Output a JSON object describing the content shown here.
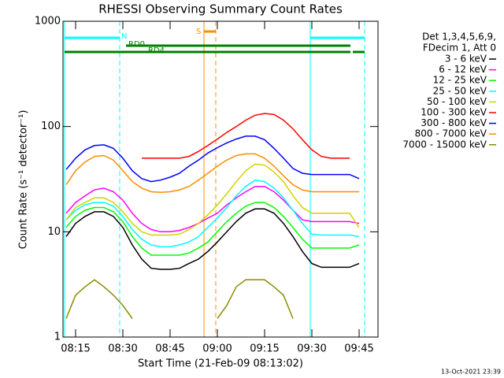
{
  "chart_data": {
    "type": "line",
    "title": "RHESSI Observing Summary Count Rates",
    "x_label": "Start Time (21-Feb-09 08:13:02)",
    "y_label": "Count Rate (s⁻¹ detector⁻¹)",
    "legend_header": [
      "Det 1,3,4,5,6,9,",
      "FDecim 1, Att 0"
    ],
    "footer": "13-Oct-2021 23:39",
    "log_y": true,
    "ylim": [
      1,
      1000
    ],
    "yticks": [
      1,
      10,
      100,
      1000
    ],
    "xlim": [
      11,
      111
    ],
    "xticks": [
      {
        "value": 15,
        "label": "08:15"
      },
      {
        "value": 30,
        "label": "08:30"
      },
      {
        "value": 45,
        "label": "08:45"
      },
      {
        "value": 60,
        "label": "09:00"
      },
      {
        "value": 75,
        "label": "09:15"
      },
      {
        "value": 90,
        "label": "09:30"
      },
      {
        "value": 105,
        "label": "09:45"
      }
    ],
    "x": [
      12,
      15,
      18,
      21,
      24,
      27,
      30,
      33,
      36,
      39,
      42,
      45,
      48,
      51,
      54,
      57,
      60,
      63,
      66,
      69,
      72,
      75,
      78,
      81,
      84,
      87,
      90,
      93,
      96,
      99,
      102,
      105
    ],
    "series": [
      {
        "name": "3 - 6 keV",
        "color": "#000000",
        "values": [
          9,
          12,
          14,
          15.5,
          15.5,
          14,
          11,
          7.5,
          5.5,
          4.5,
          4.4,
          4.4,
          4.5,
          5,
          5.5,
          6.5,
          8,
          10,
          12.5,
          15,
          16.5,
          16.5,
          15,
          12,
          9,
          6.5,
          5,
          4.6,
          4.6,
          4.6,
          4.6,
          5
        ]
      },
      {
        "name": "6 - 12 keV",
        "color": "#ff00ff",
        "values": [
          15,
          19,
          22,
          25,
          26,
          24,
          20,
          15,
          12,
          10.5,
          10,
          10,
          10.3,
          11,
          12,
          13.5,
          15,
          18,
          21,
          24,
          27,
          27,
          24,
          20,
          16,
          13,
          12.5,
          12.5,
          12.5,
          12.5,
          12.5,
          12
        ]
      },
      {
        "name": "12 - 25 keV",
        "color": "#00ff00",
        "values": [
          11,
          14,
          16,
          17,
          17,
          15.5,
          12.5,
          9,
          7,
          6,
          6,
          6,
          6,
          6.3,
          7,
          8,
          10,
          12.5,
          15,
          17.5,
          19,
          19,
          17,
          14,
          11,
          8.5,
          7,
          7,
          7,
          7,
          7,
          7.5
        ]
      },
      {
        "name": "25 - 50 keV",
        "color": "#00ffff",
        "values": [
          13,
          16,
          18,
          19,
          19,
          17.5,
          14,
          10.5,
          8.5,
          7.5,
          7.2,
          7.2,
          7.5,
          8,
          9,
          11,
          13.5,
          17,
          22,
          27,
          31,
          30,
          26,
          21,
          16,
          12,
          9.5,
          9.3,
          9.3,
          9.3,
          9.3,
          9
        ]
      },
      {
        "name": "50 - 100 keV",
        "color": "#d2d200",
        "values": [
          13,
          17,
          19,
          21,
          21,
          19,
          15.5,
          12,
          10,
          9.3,
          9.3,
          9.3,
          9.5,
          10.5,
          12,
          14.5,
          18,
          23,
          30,
          38,
          44,
          43,
          37,
          30,
          22,
          17,
          15,
          15,
          15,
          15,
          15,
          11
        ]
      },
      {
        "name": "100 - 300 keV",
        "color": "#ff0000",
        "values": [
          null,
          null,
          null,
          null,
          null,
          null,
          null,
          null,
          50,
          50,
          50,
          50,
          50,
          52,
          58,
          66,
          76,
          88,
          100,
          115,
          128,
          133,
          130,
          115,
          95,
          75,
          60,
          52,
          50,
          50,
          50,
          null
        ]
      },
      {
        "name": "300 - 800 keV",
        "color": "#0000ff",
        "values": [
          39,
          50,
          60,
          66,
          67,
          62,
          50,
          38,
          32,
          30,
          31,
          33,
          36,
          42,
          48,
          56,
          63,
          70,
          76,
          81,
          81,
          75,
          62,
          50,
          40,
          36,
          35,
          35,
          35,
          35,
          35,
          32
        ]
      },
      {
        "name": "800 - 7000 keV",
        "color": "#ff8c00",
        "values": [
          28,
          38,
          46,
          52,
          53,
          48,
          38,
          30,
          26,
          24,
          23.7,
          24,
          25,
          27,
          31,
          36,
          42,
          48,
          53,
          55,
          55,
          50,
          42,
          34,
          28,
          25,
          24,
          24,
          24,
          24,
          24,
          24
        ]
      },
      {
        "name": "7000 - 15000 keV",
        "color": "#8b8b00",
        "values": [
          1.5,
          2.5,
          3,
          3.5,
          3,
          2.5,
          2,
          1.5,
          null,
          null,
          null,
          null,
          null,
          null,
          null,
          null,
          1.5,
          2,
          3,
          3.5,
          3.5,
          3.5,
          3,
          2.5,
          1.5,
          null,
          null,
          null,
          null,
          null,
          null,
          null
        ]
      }
    ],
    "intervals": [
      {
        "label": "N",
        "color": "#00ffff",
        "lines": true,
        "segments": [
          [
            11.5,
            29
          ],
          [
            89.5,
            106.75
          ]
        ]
      },
      {
        "label": "S",
        "color": "#ff8c00",
        "lines": true,
        "segments": [
          [
            55.75,
            59.5
          ]
        ]
      },
      {
        "label": "RD0",
        "color": "#008000",
        "lines": false,
        "segments": [
          [
            31,
            102.25
          ]
        ]
      },
      {
        "label": "RD4",
        "color": "#008000",
        "lines": false,
        "segments": [
          [
            11.5,
            102.25
          ],
          [
            103,
            106.75
          ]
        ]
      }
    ]
  }
}
